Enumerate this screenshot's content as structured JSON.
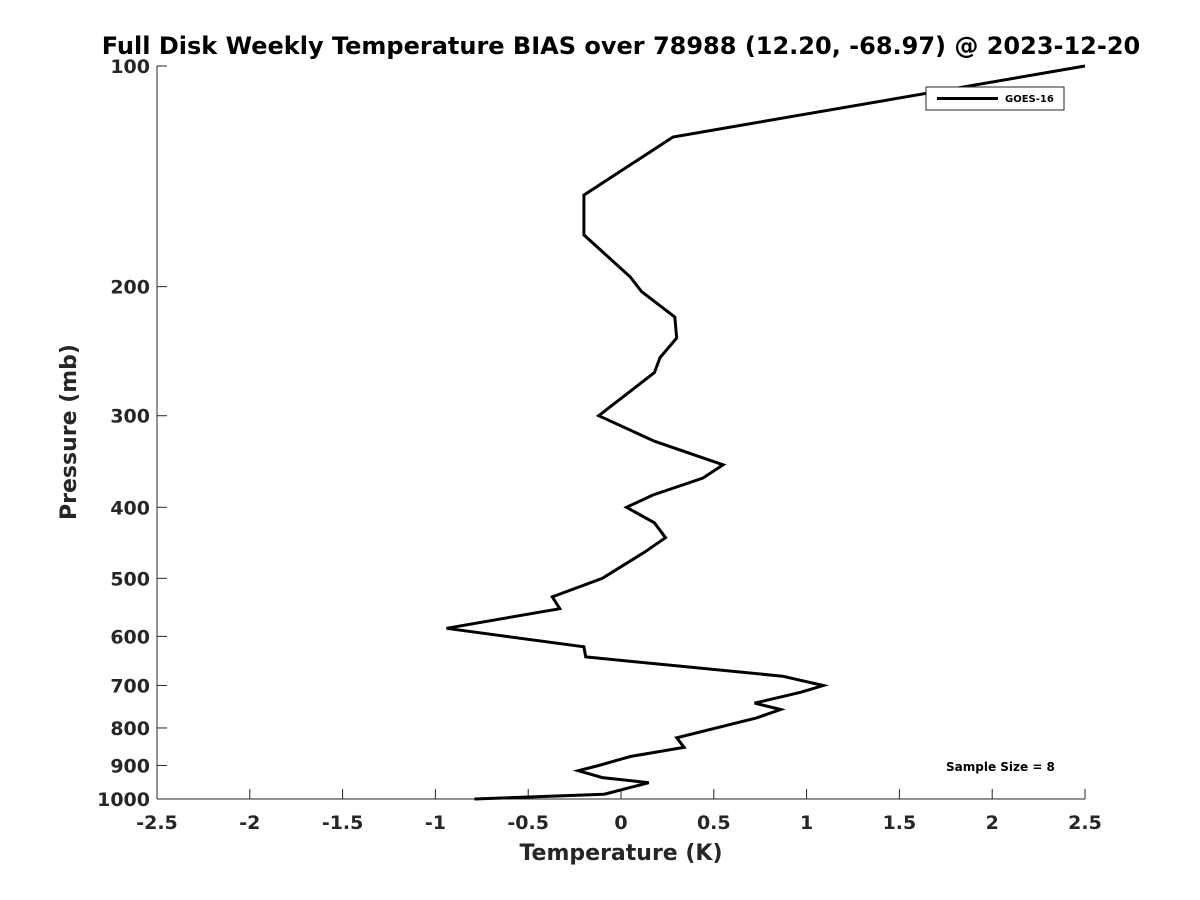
{
  "chart_data": {
    "type": "line",
    "title": "Full Disk Weekly Temperature BIAS over 78988 (12.20, -68.97) @ 2023-12-20",
    "xlabel": "Temperature (K)",
    "ylabel": "Pressure (mb)",
    "xlim": [
      -2.5,
      2.5
    ],
    "ylim": [
      100,
      1000
    ],
    "y_scale": "log",
    "y_reversed": true,
    "grid": false,
    "x_ticks": [
      "-2.5",
      "-2",
      "-1.5",
      "-1",
      "-0.5",
      "0",
      "0.5",
      "1",
      "1.5",
      "2",
      "2.5"
    ],
    "y_ticks": [
      "100",
      "200",
      "300",
      "400",
      "500",
      "600",
      "700",
      "800",
      "900",
      "1000"
    ],
    "legend": {
      "placement": "top-right",
      "entries": [
        "GOES-16"
      ]
    },
    "annotation": "Sample Size = 8",
    "series": [
      {
        "name": "GOES-16",
        "color": "#000000",
        "points": [
          [
            2.5,
            100
          ],
          [
            0.28,
            125
          ],
          [
            -0.2,
            150
          ],
          [
            -0.2,
            170
          ],
          [
            0.05,
            194
          ],
          [
            0.11,
            203
          ],
          [
            0.29,
            220
          ],
          [
            0.3,
            235
          ],
          [
            0.21,
            250
          ],
          [
            0.18,
            262
          ],
          [
            -0.12,
            300
          ],
          [
            0.18,
            325
          ],
          [
            0.55,
            350
          ],
          [
            0.44,
            365
          ],
          [
            0.17,
            385
          ],
          [
            0.03,
            400
          ],
          [
            0.18,
            420
          ],
          [
            0.24,
            440
          ],
          [
            0.13,
            460
          ],
          [
            -0.1,
            500
          ],
          [
            -0.37,
            530
          ],
          [
            -0.33,
            550
          ],
          [
            -0.94,
            585
          ],
          [
            -0.2,
            620
          ],
          [
            -0.19,
            640
          ],
          [
            0.87,
            680
          ],
          [
            1.09,
            700
          ],
          [
            0.97,
            715
          ],
          [
            0.72,
            740
          ],
          [
            0.86,
            755
          ],
          [
            0.73,
            775
          ],
          [
            0.3,
            825
          ],
          [
            0.34,
            850
          ],
          [
            0.05,
            875
          ],
          [
            -0.12,
            900
          ],
          [
            -0.23,
            915
          ],
          [
            -0.1,
            935
          ],
          [
            0.15,
            950
          ],
          [
            -0.09,
            985
          ],
          [
            -0.79,
            1000
          ]
        ]
      }
    ]
  }
}
